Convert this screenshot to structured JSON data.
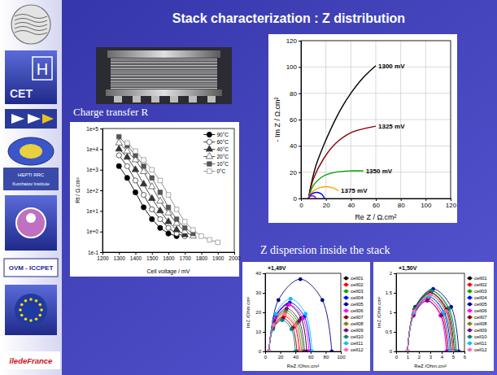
{
  "slide": {
    "title": "Stack characterization : Z distribution",
    "caption": "Z dispersion inside the stack",
    "logos": [
      "H",
      "CET",
      "HEPTI RRC",
      "Kurchatov Institute",
      "OVM - ICCPET",
      "îledeFrance"
    ]
  },
  "chart_data": [
    {
      "type": "line",
      "x_label": "Re Z / Ω.cm²",
      "y_label": "- Im Z / Ω.cm²",
      "xlim": [
        0,
        120
      ],
      "ylim": [
        0,
        120
      ],
      "xticks": [
        0,
        20,
        40,
        60,
        80,
        100,
        120
      ],
      "yticks": [
        0,
        20,
        40,
        60,
        80,
        100,
        120
      ],
      "grid": true,
      "legend": "inline",
      "marker": "none",
      "line_style": "solid",
      "series": [
        {
          "name": "1300 mV",
          "color": "#000000",
          "x": [
            6,
            8,
            12,
            18,
            25,
            32,
            40,
            50,
            60
          ],
          "values": [
            0,
            10,
            25,
            40,
            55,
            68,
            80,
            92,
            101
          ]
        },
        {
          "name": "1325 mV",
          "color": "#8b0000",
          "x": [
            6,
            10,
            18,
            28,
            40,
            50,
            60
          ],
          "values": [
            0,
            15,
            30,
            42,
            50,
            53,
            55
          ]
        },
        {
          "name": "1350 mV",
          "color": "#00a000",
          "x": [
            6,
            10,
            18,
            28,
            40,
            50
          ],
          "values": [
            0,
            10,
            17,
            20,
            21,
            21
          ]
        },
        {
          "name": "1375 mV",
          "color": "#ffa500",
          "x": [
            6,
            9,
            14,
            20,
            26,
            30
          ],
          "values": [
            0,
            5,
            8,
            9,
            8,
            6
          ]
        },
        {
          "color": "#0000ff",
          "x": [
            6,
            8,
            11,
            14,
            17,
            19
          ],
          "values": [
            0,
            3,
            4.5,
            4.5,
            3,
            0
          ]
        },
        {
          "color": "#9900cc",
          "x": [
            6,
            7,
            9,
            11,
            12
          ],
          "values": [
            0,
            1.5,
            2,
            1.5,
            0
          ]
        }
      ]
    },
    {
      "type": "line",
      "title": "Charge transfer R",
      "x_label": "Cell voltage / mV",
      "y_label": "Rt / Ω.cm²",
      "log": "y",
      "xlim": [
        1200,
        2000
      ],
      "ylim": [
        0.1,
        100000
      ],
      "xticks": [
        1200,
        1300,
        1400,
        1500,
        1600,
        1700,
        1800,
        1900,
        2000
      ],
      "yticks": [
        {
          "value": 0.1,
          "label": "1e-1"
        },
        {
          "value": 1,
          "label": "1e+0"
        },
        {
          "value": 10,
          "label": "1e+1"
        },
        {
          "value": 100,
          "label": "1e+2"
        },
        {
          "value": 1000,
          "label": "1e+3"
        },
        {
          "value": 10000,
          "label": "1e+4"
        },
        {
          "value": 100000,
          "label": "1e+5"
        }
      ],
      "grid": false,
      "legend": "upper right",
      "line_style": "solid",
      "series": [
        {
          "name": "90°C",
          "color": "#000000",
          "marker": "circle",
          "x": [
            1300,
            1350,
            1400,
            1450,
            1500,
            1550,
            1600,
            1650
          ],
          "values": [
            1500,
            400,
            80,
            15,
            4,
            1.5,
            0.8,
            0.6
          ]
        },
        {
          "name": "60°C",
          "color": "#222222",
          "marker": "circle-open",
          "x": [
            1300,
            1350,
            1400,
            1450,
            1500,
            1550,
            1600,
            1650,
            1700
          ],
          "values": [
            5000,
            1500,
            300,
            60,
            12,
            4,
            1.5,
            0.8,
            0.6
          ]
        },
        {
          "name": "40°C",
          "color": "#333333",
          "marker": "triangle",
          "x": [
            1300,
            1350,
            1400,
            1450,
            1500,
            1550,
            1600,
            1650,
            1700
          ],
          "values": [
            10000,
            4000,
            1000,
            200,
            40,
            10,
            3,
            1.2,
            0.7
          ]
        },
        {
          "name": "20°C",
          "color": "#444444",
          "marker": "triangle-open",
          "x": [
            1300,
            1350,
            1400,
            1450,
            1500,
            1550,
            1600,
            1650,
            1700,
            1750
          ],
          "values": [
            20000,
            8000,
            3000,
            800,
            150,
            30,
            8,
            2.5,
            1,
            0.6
          ]
        },
        {
          "name": "10°C",
          "color": "#555555",
          "marker": "square",
          "x": [
            1300,
            1350,
            1400,
            1450,
            1500,
            1550,
            1600,
            1650,
            1700,
            1750
          ],
          "values": [
            40000,
            15000,
            5000,
            1500,
            400,
            80,
            15,
            4,
            1.5,
            0.8
          ]
        },
        {
          "name": "0°C",
          "color": "#888888",
          "marker": "square-open",
          "x": [
            1350,
            1400,
            1450,
            1500,
            1550,
            1600,
            1650,
            1700,
            1750,
            1800,
            1850,
            1900
          ],
          "values": [
            20000,
            8000,
            3000,
            1000,
            300,
            60,
            12,
            3,
            1.2,
            0.6,
            0.4,
            0.3
          ]
        }
      ]
    },
    {
      "type": "line",
      "title": "+1,49V",
      "x_label": "ReZ /Ohm.cm²",
      "y_label": "ImZ /Ohm.cm²",
      "xlim": [
        0,
        100
      ],
      "ylim": [
        0,
        40
      ],
      "xticks": [
        0,
        20,
        40,
        60,
        80,
        100
      ],
      "yticks": [
        0,
        10,
        20,
        30,
        40
      ],
      "grid": false,
      "legend": "right",
      "marker": "circle",
      "line_style": "solid",
      "series": [
        {
          "name": "cell01",
          "color": "#000000",
          "x": [
            5,
            12.5,
            30,
            47.5,
            55
          ],
          "values": [
            0,
            17,
            24,
            17,
            0
          ]
        },
        {
          "name": "cell02",
          "color": "#ff0000",
          "x": [
            5,
            11,
            25,
            39,
            45
          ],
          "values": [
            0,
            13,
            18,
            13,
            0
          ]
        },
        {
          "name": "cell03",
          "color": "#00aa00",
          "x": [
            5,
            11.8,
            27.5,
            43.3,
            50
          ],
          "values": [
            0,
            15,
            21,
            15,
            0
          ]
        },
        {
          "name": "cell04",
          "color": "#0000ff",
          "x": [
            5,
            13.3,
            32.5,
            51.8,
            60
          ],
          "values": [
            0,
            17.8,
            25,
            17.8,
            0
          ]
        },
        {
          "name": "cell05",
          "color": "#000080",
          "x": [
            5,
            17.5,
            46.5,
            75.6,
            88
          ],
          "values": [
            0,
            26.3,
            37,
            26.3,
            0
          ]
        },
        {
          "name": "cell06",
          "color": "#ff00ff",
          "x": [
            5,
            13,
            31.5,
            50,
            58
          ],
          "values": [
            0,
            17,
            24,
            17,
            0
          ]
        },
        {
          "name": "cell07",
          "color": "#800000",
          "x": [
            5,
            10.6,
            23.5,
            36.5,
            42
          ],
          "values": [
            0,
            12,
            17,
            12,
            0
          ]
        },
        {
          "name": "cell08",
          "color": "#808000",
          "x": [
            5,
            11.5,
            26.5,
            41.5,
            48
          ],
          "values": [
            0,
            14.2,
            20,
            14.2,
            0
          ]
        },
        {
          "name": "cell09",
          "color": "#800080",
          "x": [
            5,
            12,
            28.5,
            45,
            52
          ],
          "values": [
            0,
            15.6,
            22,
            15.6,
            0
          ]
        },
        {
          "name": "cell10",
          "color": "#008080",
          "x": [
            5,
            10.3,
            22.5,
            34.8,
            40
          ],
          "values": [
            0,
            11.4,
            16,
            11.4,
            0
          ]
        },
        {
          "name": "cell11",
          "color": "#00bfff",
          "x": [
            5,
            13.6,
            33.5,
            53.5,
            62
          ],
          "values": [
            0,
            19.2,
            27,
            19.2,
            0
          ]
        },
        {
          "name": "cell12",
          "color": "#ff69b4",
          "x": [
            5,
            11.2,
            25.5,
            39.9,
            46
          ],
          "values": [
            0,
            13.5,
            19,
            13.5,
            0
          ]
        }
      ]
    },
    {
      "type": "line",
      "title": "+1,50V",
      "x_label": "ReZ /Ohm.cm²",
      "y_label": "ImZ /Ohm.cm²",
      "xlim": [
        0,
        6
      ],
      "ylim": [
        0,
        2
      ],
      "xticks": [
        0,
        1,
        2,
        3,
        4,
        5,
        6
      ],
      "yticks": [
        0,
        0.5,
        1,
        1.5,
        2
      ],
      "grid": false,
      "legend": "right",
      "marker": "circle",
      "line_style": "solid",
      "series": [
        {
          "name": "cell01",
          "color": "#000000",
          "x": [
            1,
            1.6,
            3,
            4.4,
            5
          ],
          "values": [
            0,
            1.07,
            1.5,
            1.07,
            0
          ]
        },
        {
          "name": "cell02",
          "color": "#ff0000",
          "x": [
            1,
            1.54,
            2.8,
            4.06,
            4.6
          ],
          "values": [
            0,
            0.96,
            1.35,
            0.96,
            0
          ]
        },
        {
          "name": "cell03",
          "color": "#00aa00",
          "x": [
            1,
            1.63,
            3.1,
            4.57,
            5.2
          ],
          "values": [
            0,
            1.1,
            1.55,
            1.1,
            0
          ]
        },
        {
          "name": "cell04",
          "color": "#0000ff",
          "x": [
            1,
            1.57,
            2.9,
            4.23,
            4.8
          ],
          "values": [
            0,
            0.99,
            1.4,
            0.99,
            0
          ]
        },
        {
          "name": "cell05",
          "color": "#000080",
          "x": [
            1,
            1.68,
            3.25,
            4.83,
            5.5
          ],
          "values": [
            0,
            1.14,
            1.6,
            1.14,
            0
          ]
        },
        {
          "name": "cell06",
          "color": "#ff00ff",
          "x": [
            1,
            1.51,
            2.7,
            3.89,
            4.4
          ],
          "values": [
            0,
            0.92,
            1.3,
            0.92,
            0
          ]
        },
        {
          "name": "cell07",
          "color": "#800000",
          "x": [
            1,
            1.62,
            3.05,
            4.49,
            5.1
          ],
          "values": [
            0,
            1.07,
            1.5,
            1.07,
            0
          ]
        },
        {
          "name": "cell08",
          "color": "#808000",
          "x": [
            1,
            1.59,
            2.95,
            4.32,
            4.9
          ],
          "values": [
            0,
            1.03,
            1.45,
            1.03,
            0
          ]
        },
        {
          "name": "cell09",
          "color": "#800080",
          "x": [
            1,
            1.53,
            2.75,
            3.98,
            4.5
          ],
          "values": [
            0,
            0.92,
            1.3,
            0.92,
            0
          ]
        },
        {
          "name": "cell10",
          "color": "#008080",
          "x": [
            1,
            1.65,
            3.15,
            4.66,
            5.3
          ],
          "values": [
            0,
            1.1,
            1.55,
            1.1,
            0
          ]
        },
        {
          "name": "cell11",
          "color": "#00bfff",
          "x": [
            1,
            1.56,
            2.85,
            4.15,
            4.7
          ],
          "values": [
            0,
            0.99,
            1.4,
            0.99,
            0
          ]
        },
        {
          "name": "cell12",
          "color": "#ff69b4",
          "x": [
            1,
            1.6,
            3,
            4.4,
            5
          ],
          "values": [
            0,
            1.03,
            1.45,
            1.03,
            0
          ]
        }
      ]
    }
  ]
}
